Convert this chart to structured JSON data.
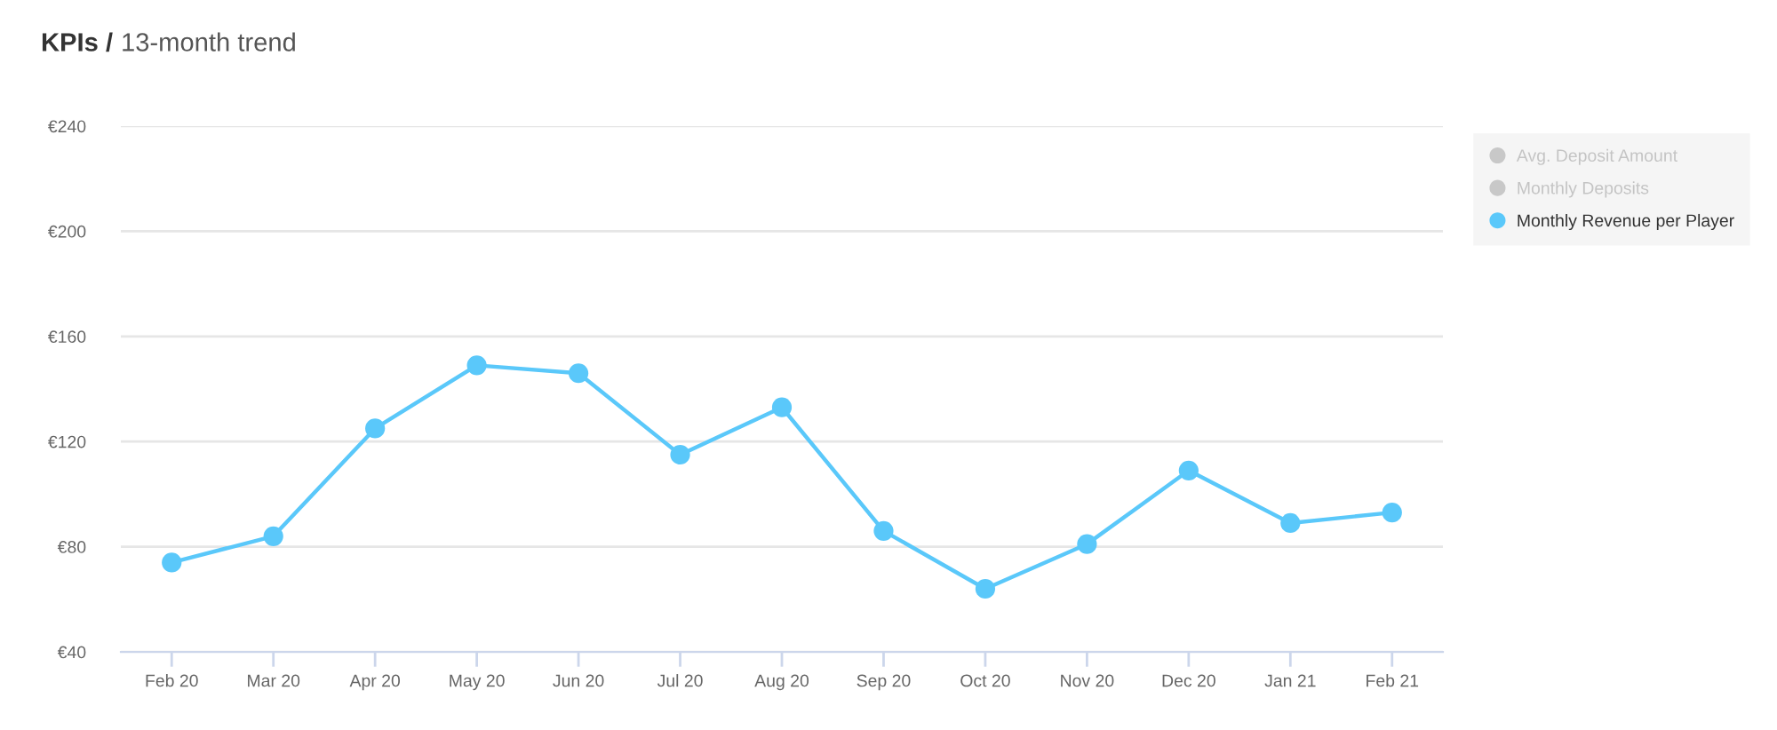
{
  "chart_data": {
    "type": "line",
    "title": "KPIs /",
    "subtitle": "13-month trend",
    "categories": [
      "Feb 20",
      "Mar 20",
      "Apr 20",
      "May 20",
      "Jun 20",
      "Jul 20",
      "Aug 20",
      "Sep 20",
      "Oct 20",
      "Nov 20",
      "Dec 20",
      "Jan 21",
      "Feb 21"
    ],
    "series": [
      {
        "name": "Avg. Deposit Amount",
        "color": "#c8c8c8",
        "values": [
          null,
          null,
          null,
          null,
          null,
          null,
          null,
          null,
          null,
          null,
          null,
          null,
          null
        ]
      },
      {
        "name": "Monthly Deposits",
        "color": "#c8c8c8",
        "values": [
          null,
          null,
          null,
          null,
          null,
          null,
          null,
          null,
          null,
          null,
          null,
          null,
          null
        ]
      },
      {
        "name": "Monthly Revenue per Player",
        "color": "#5ac8fa",
        "values": [
          74,
          84,
          125,
          149,
          146,
          115,
          133,
          86,
          64,
          81,
          109,
          89,
          93
        ]
      }
    ],
    "ylim": [
      40,
      240
    ],
    "yticks": [
      {
        "value": 40,
        "label": "€40"
      },
      {
        "value": 80,
        "label": "€80"
      },
      {
        "value": 120,
        "label": "€120"
      },
      {
        "value": 160,
        "label": "€160"
      },
      {
        "value": 200,
        "label": "€200"
      },
      {
        "value": 240,
        "label": "€240"
      }
    ],
    "grid": "y",
    "legend": "top right",
    "marker": "circle",
    "line_style": "solid"
  }
}
